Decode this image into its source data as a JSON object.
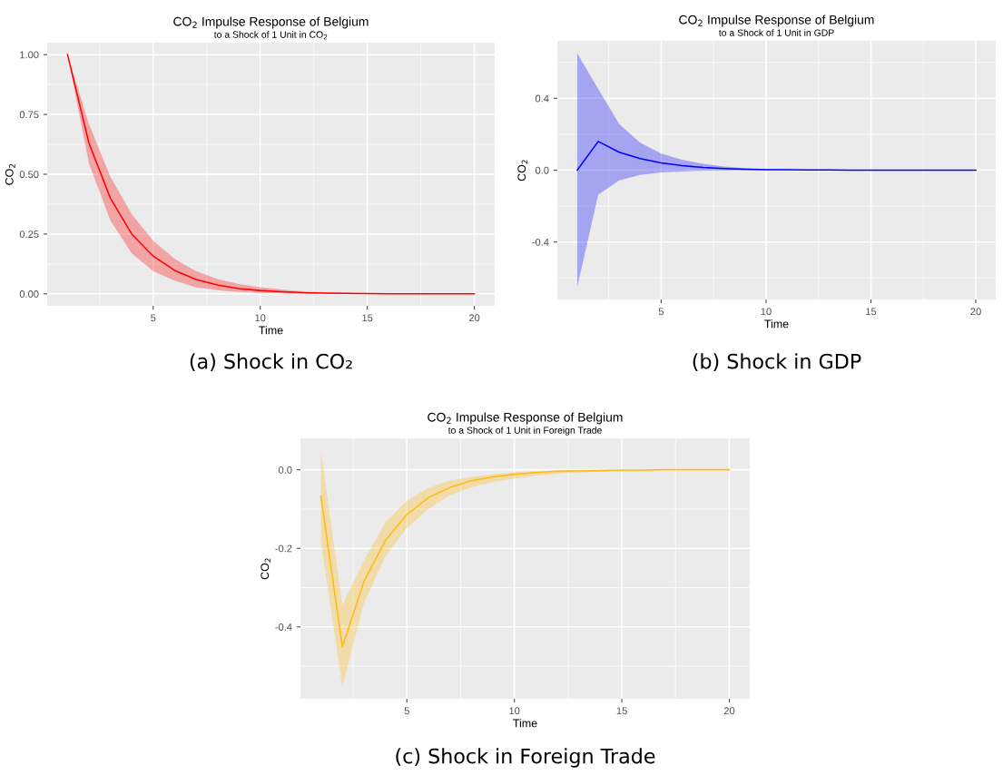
{
  "chart_data": [
    {
      "type": "line",
      "title": "CO$_{2}$ Impulse Response of Belgium",
      "subtitle": "to a Shock of 1 Unit in CO$_{2}$",
      "xlabel": "Time",
      "ylabel": "CO$_{2}$",
      "annotations": [
        "(a) Shock in CO₂"
      ],
      "x": [
        1,
        2,
        3,
        4,
        5,
        6,
        7,
        8,
        9,
        10,
        11,
        12,
        13,
        14,
        15,
        16,
        17,
        18,
        19,
        20
      ],
      "series": [
        {
          "color": "#ff0000",
          "values": [
            1.0,
            0.63,
            0.4,
            0.25,
            0.158,
            0.098,
            0.06,
            0.037,
            0.022,
            0.014,
            0.009,
            0.005,
            0.003,
            0.002,
            0.001,
            0,
            0,
            0,
            0,
            0
          ],
          "lower": [
            1.0,
            0.545,
            0.307,
            0.169,
            0.095,
            0.055,
            0.028,
            0.015,
            0.008,
            0.004,
            0.002,
            0.001,
            0,
            0,
            0,
            0,
            0,
            0,
            0,
            0
          ],
          "upper": [
            1.0,
            0.71,
            0.49,
            0.333,
            0.222,
            0.146,
            0.095,
            0.062,
            0.041,
            0.028,
            0.018,
            0.011,
            0.007,
            0.004,
            0.002,
            0.001,
            0,
            0,
            0,
            0
          ]
        }
      ],
      "xlim": [
        0.05,
        20.95
      ],
      "xticks": [
        5,
        10,
        15,
        20
      ],
      "ylim": [
        -0.05,
        1.05
      ],
      "yticks": [
        {
          "value": 0,
          "label": "0.00"
        },
        {
          "value": 0.25,
          "label": "0.25"
        },
        {
          "value": 0.5,
          "label": "0.50"
        },
        {
          "value": 0.75,
          "label": "0.75"
        },
        {
          "value": 1,
          "label": "1.00"
        }
      ],
      "grid": true,
      "legend": false
    },
    {
      "type": "line",
      "title": "CO$_{2}$ Impulse Response of Belgium",
      "subtitle": "to a Shock of 1 Unit in GDP",
      "xlabel": "Time",
      "ylabel": "CO$_{2}$",
      "annotations": [
        "(b) Shock in GDP"
      ],
      "x": [
        1,
        2,
        3,
        4,
        5,
        6,
        7,
        8,
        9,
        10,
        11,
        12,
        13,
        14,
        15,
        16,
        17,
        18,
        19,
        20
      ],
      "series": [
        {
          "color": "#0000ff",
          "values": [
            0,
            0.16,
            0.1,
            0.064,
            0.04,
            0.025,
            0.015,
            0.009,
            0.005,
            0.003,
            0.002,
            0.001,
            0.001,
            0,
            0,
            0,
            0,
            0,
            0,
            0
          ],
          "lower": [
            -0.65,
            -0.136,
            -0.057,
            -0.026,
            -0.013,
            -0.007,
            -0.004,
            -0.002,
            -0.001,
            0,
            0,
            0,
            0,
            0,
            0,
            0,
            0,
            0,
            0,
            0
          ],
          "upper": [
            0.65,
            0.452,
            0.257,
            0.153,
            0.092,
            0.058,
            0.035,
            0.02,
            0.012,
            0.007,
            0.004,
            0.002,
            0.001,
            0,
            0,
            0,
            0,
            0,
            0,
            0
          ]
        }
      ],
      "xlim": [
        0.05,
        20.95
      ],
      "xticks": [
        5,
        10,
        15,
        20
      ],
      "ylim": [
        -0.72,
        0.72
      ],
      "yticks": [
        {
          "value": -0.4,
          "label": "-0.4"
        },
        {
          "value": 0,
          "label": "0.0"
        },
        {
          "value": 0.4,
          "label": "0.4"
        }
      ],
      "grid": true,
      "legend": false
    },
    {
      "type": "line",
      "title": "CO$_{2}$ Impulse Response of Belgium",
      "subtitle": "to a Shock of 1 Unit in Foreign Trade",
      "xlabel": "Time",
      "ylabel": "CO$_{2}$",
      "annotations": [
        "(c) Shock in Foreign Trade"
      ],
      "x": [
        1,
        2,
        3,
        4,
        5,
        6,
        7,
        8,
        9,
        10,
        11,
        12,
        13,
        14,
        15,
        16,
        17,
        18,
        19,
        20
      ],
      "series": [
        {
          "color": "#ffb90f",
          "values": [
            -0.067,
            -0.451,
            -0.285,
            -0.18,
            -0.114,
            -0.071,
            -0.045,
            -0.028,
            -0.018,
            -0.012,
            -0.007,
            -0.004,
            -0.003,
            -0.002,
            -0.001,
            -0.001,
            0,
            0,
            0,
            0
          ],
          "lower": [
            -0.182,
            -0.553,
            -0.34,
            -0.221,
            -0.148,
            -0.1,
            -0.065,
            -0.045,
            -0.031,
            -0.023,
            -0.015,
            -0.01,
            -0.007,
            -0.005,
            -0.003,
            -0.002,
            -0.001,
            -0.001,
            0,
            0
          ],
          "upper": [
            0.049,
            -0.344,
            -0.231,
            -0.134,
            -0.079,
            -0.046,
            -0.028,
            -0.018,
            -0.011,
            -0.006,
            -0.003,
            -0.002,
            -0.001,
            0,
            0,
            0,
            0,
            0,
            0,
            0
          ]
        }
      ],
      "xlim": [
        0.05,
        20.95
      ],
      "xticks": [
        5,
        10,
        15,
        20
      ],
      "ylim": [
        -0.583,
        0.08
      ],
      "yticks": [
        {
          "value": -0.4,
          "label": "-0.4"
        },
        {
          "value": -0.2,
          "label": "-0.2"
        },
        {
          "value": 0,
          "label": "0.0"
        }
      ],
      "grid": true,
      "legend": false
    }
  ]
}
